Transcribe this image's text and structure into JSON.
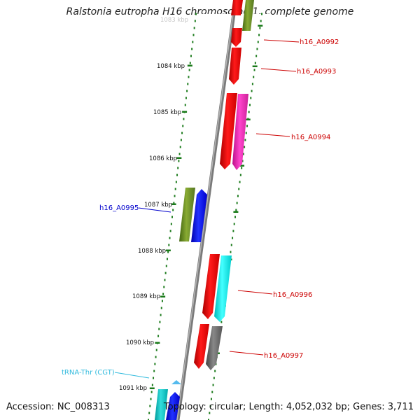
{
  "title": "Ralstonia eutropha H16 chromosome 1, complete genome",
  "footer": {
    "accession": "Accession: NC_008313",
    "summary": "Topology: circular; Length: 4,052,032 bp; Genes: 3,711"
  },
  "scale": {
    "top_label_faded": "1083 kbp",
    "labels": [
      "1084 kbp",
      "1085 kbp",
      "1086 kbp",
      "1087 kbp",
      "1088 kbp",
      "1089 kbp",
      "1090 kbp",
      "1091 kbp"
    ]
  },
  "gene_labels": [
    {
      "text": "h16_A0992",
      "color": "#cc0000"
    },
    {
      "text": "h16_A0993",
      "color": "#cc0000"
    },
    {
      "text": "h16_A0994",
      "color": "#cc0000"
    },
    {
      "text": "h16_A0995",
      "color": "#0000cc"
    },
    {
      "text": "h16_A0996",
      "color": "#cc0000"
    },
    {
      "text": "h16_A0997",
      "color": "#cc0000"
    },
    {
      "text": "tRNA-Thr (CGT)",
      "color": "#33bbdd"
    }
  ],
  "colors": {
    "cds_forward": "#ee0000",
    "cds_reverse": "#0000ee",
    "cog_a": "#ee22aa",
    "cog_b": "#00eeee",
    "cog_c": "#669922",
    "cog_d": "#666666",
    "trna": "#00cccc",
    "ticks": "#1a7a1a",
    "backbone": "#888888"
  }
}
